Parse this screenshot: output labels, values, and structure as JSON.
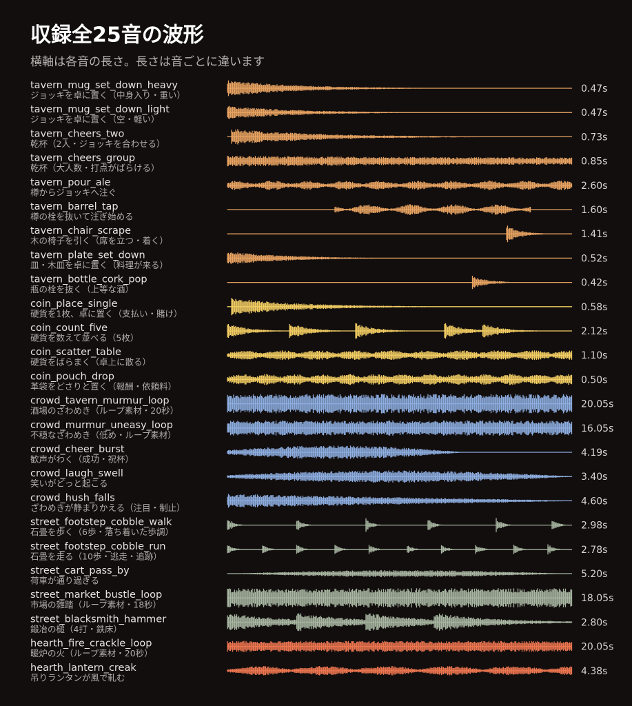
{
  "chart_data": {
    "type": "waveform",
    "title": "収録全25音の波形",
    "subtitle": "横軸は各音の長さ。長さは音ごとに違います",
    "categories": [
      "tavern_mug_set_down_heavy",
      "tavern_mug_set_down_light",
      "tavern_cheers_two",
      "tavern_cheers_group",
      "tavern_pour_ale",
      "tavern_barrel_tap",
      "tavern_chair_scrape",
      "tavern_plate_set_down",
      "tavern_bottle_cork_pop",
      "coin_place_single",
      "coin_count_five",
      "coin_scatter_table",
      "coin_pouch_drop",
      "crowd_tavern_murmur_loop",
      "crowd_murmur_uneasy_loop",
      "crowd_cheer_burst",
      "crowd_laugh_swell",
      "crowd_hush_falls",
      "street_footstep_cobble_walk",
      "street_footstep_cobble_run",
      "street_cart_pass_by",
      "street_market_bustle_loop",
      "street_blacksmith_hammer",
      "hearth_fire_crackle_loop",
      "hearth_lantern_creak"
    ],
    "descriptions": [
      "ジョッキを卓に置く（中身入り・重い）",
      "ジョッキを卓に置く（空・軽い）",
      "乾杯（2人・ジョッキを合わせる）",
      "乾杯（大人数・打点がばらける）",
      "樽からジョッキへ注ぐ",
      "樽の栓を抜いて注ぎ始める",
      "木の椅子を引く（席を立つ・着く）",
      "皿・木皿を卓に置く（料理が来る）",
      "瓶の栓を抜く（上等な酒）",
      "硬貨を1枚、卓に置く（支払い・賭け）",
      "硬貨を数えて並べる（5枚）",
      "硬貨をばらまく（卓上に散る）",
      "革袋をどさりと置く（報酬・依頼料）",
      "酒場のざわめき（ループ素材・20秒）",
      "不穏なざわめき（低め・ループ素材）",
      "歓声がわく（成功・祝杯）",
      "笑いがどっと起こる",
      "ざわめきが静まりかえる（注目・制止）",
      "石畳を歩く（6歩・落ち着いた歩調）",
      "石畳を走る（10歩・逃走・追跡）",
      "荷車が通り過ぎる",
      "市場の雑踏（ループ素材・18秒）",
      "鍛冶の槌（4打・鉄床）",
      "暖炉の火（ループ素材・20秒）",
      "吊りランタンが風で軋む"
    ],
    "values": [
      0.47,
      0.47,
      0.73,
      0.85,
      2.6,
      1.6,
      1.41,
      0.52,
      0.42,
      0.58,
      2.12,
      1.1,
      0.5,
      20.05,
      16.05,
      4.19,
      3.4,
      4.6,
      2.98,
      2.78,
      5.2,
      18.05,
      2.8,
      20.05,
      4.38
    ],
    "value_labels": [
      "0.47s",
      "0.47s",
      "0.73s",
      "0.85s",
      "2.60s",
      "1.60s",
      "1.41s",
      "0.52s",
      "0.42s",
      "0.58s",
      "2.12s",
      "1.10s",
      "0.50s",
      "20.05s",
      "16.05s",
      "4.19s",
      "3.40s",
      "4.60s",
      "2.98s",
      "2.78s",
      "5.20s",
      "18.05s",
      "2.80s",
      "20.05s",
      "4.38s"
    ],
    "colors": [
      "#e9a462",
      "#e9a462",
      "#e9a462",
      "#e9a462",
      "#e9a462",
      "#e9a462",
      "#e9a462",
      "#e9a462",
      "#e9a462",
      "#f2cd63",
      "#f2cd63",
      "#f2cd63",
      "#f2cd63",
      "#8eaee0",
      "#8eaee0",
      "#8eaee0",
      "#8eaee0",
      "#8eaee0",
      "#a9b7a2",
      "#a9b7a2",
      "#a9b7a2",
      "#a9b7a2",
      "#a9b7a2",
      "#ec7650",
      "#ec7650"
    ]
  }
}
